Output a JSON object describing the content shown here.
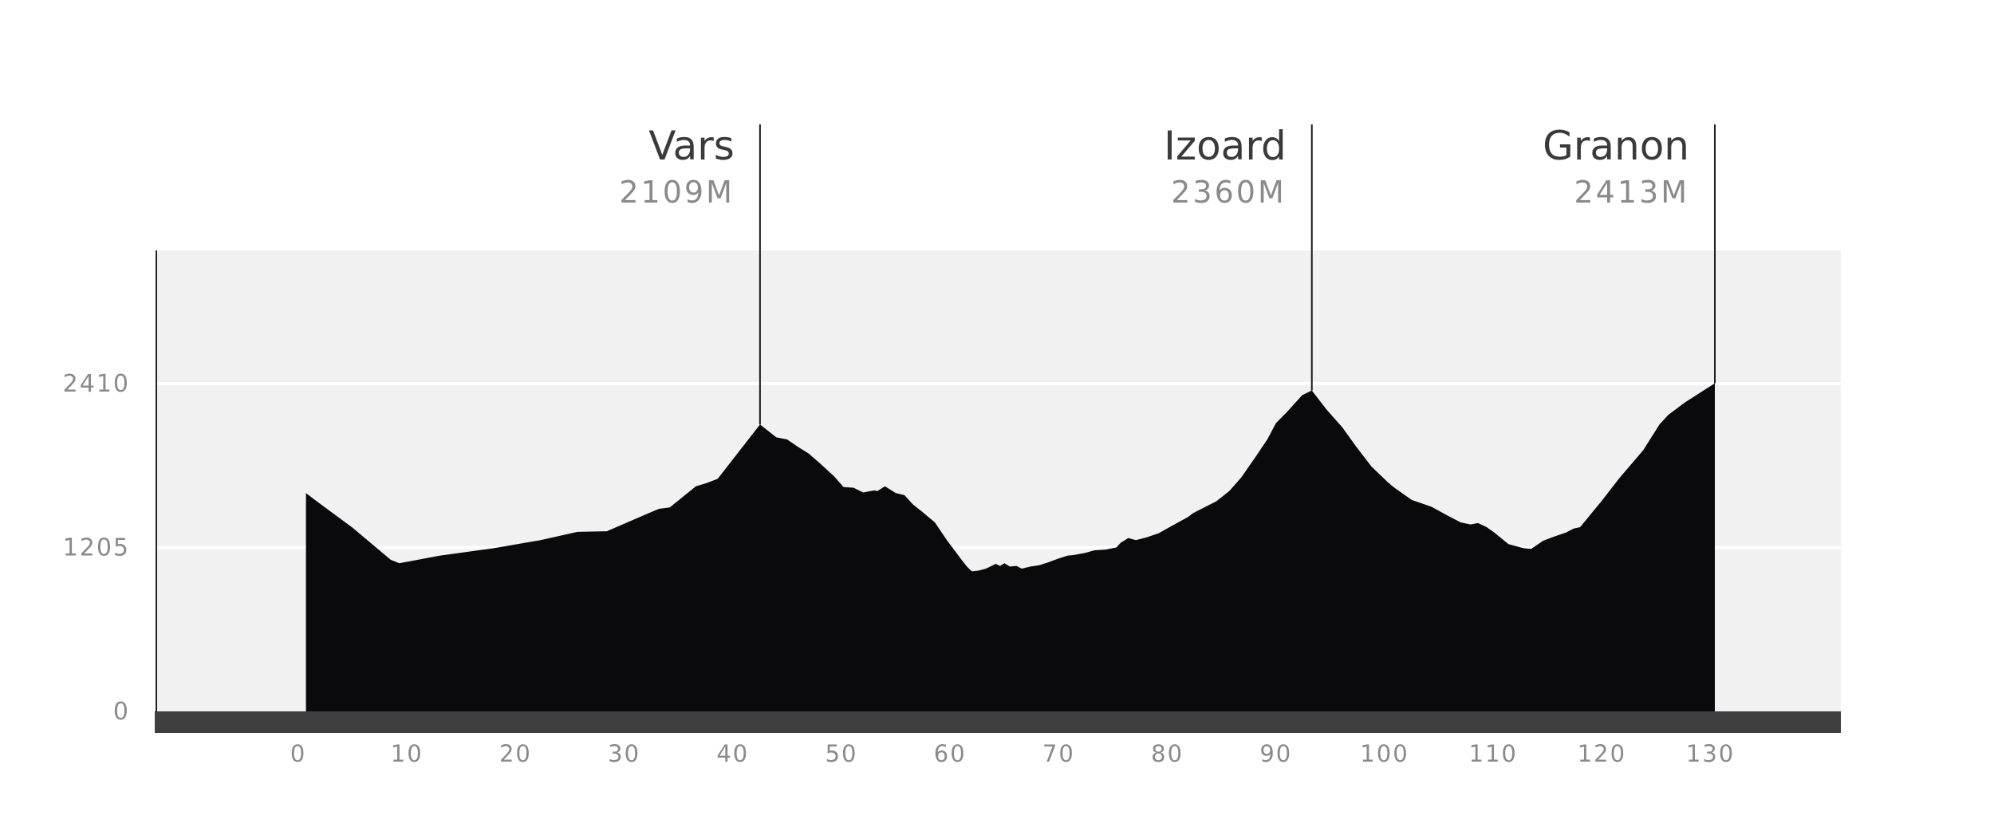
{
  "chart_data": {
    "type": "area",
    "title": "",
    "xlabel": "",
    "ylabel": "",
    "xlim": [
      -13,
      142
    ],
    "ylim": [
      0,
      3390
    ],
    "grid": "horizontal",
    "legend": "none",
    "colors": {
      "background": "#ffffff",
      "plot_area": "#f1f1f1",
      "gridline": "#ffffff",
      "profile_fill": "#0a0a0c",
      "baseline_bar": "#3f3f41",
      "axis_line": "#222222",
      "tick_text": "#8a8a8a",
      "peak_name_text": "#3a3a3a",
      "peak_elev_text": "#8a8a8a"
    },
    "x_ticks": [
      0,
      10,
      20,
      30,
      40,
      50,
      60,
      70,
      80,
      90,
      100,
      110,
      120,
      130
    ],
    "x_tick_labels": [
      "0",
      "10",
      "20",
      "30",
      "40",
      "50",
      "60",
      "70",
      "80",
      "90",
      "100",
      "110",
      "120",
      "130"
    ],
    "y_ticks": [
      0,
      1205,
      2410
    ],
    "y_tick_labels": [
      "0",
      "1205",
      "2410"
    ],
    "series": [
      {
        "x": [
          0.7,
          1.7,
          5,
          8.5,
          9.3,
          13,
          18,
          22.3,
          25.7,
          28.4,
          32.3,
          33.2,
          34.2,
          36.6,
          37.6,
          38.6,
          42.5,
          44,
          45,
          46,
          47,
          48,
          49.3,
          50.2,
          51.1,
          52,
          53,
          53.3,
          54,
          55,
          55.8,
          56.6,
          57.4,
          58.6,
          59.7,
          60.5,
          61.1,
          61.6,
          62,
          62.6,
          63.3,
          64.2,
          64.6,
          65,
          65.5,
          66.1,
          66.6,
          67.4,
          68.2,
          69,
          70,
          70.8,
          71.4,
          72.4,
          73.3,
          74.3,
          75.3,
          75.7,
          76.4,
          77.1,
          78.1,
          79.2,
          80.2,
          81.1,
          81.9,
          82.4,
          83.4,
          84.5,
          85.7,
          86.8,
          88.1,
          89.2,
          90,
          91.1,
          92.4,
          93.3,
          94.7,
          96.1,
          97.4,
          98.8,
          100.3,
          100.9,
          102.5,
          104.3,
          105.8,
          107,
          107.9,
          108.6,
          109.4,
          110.1,
          111.4,
          112.8,
          113.5,
          114.6,
          115.6,
          116.7,
          117.4,
          118,
          120,
          121.6,
          123.8,
          125.3,
          126.1,
          127.7,
          130.4
        ],
        "y": [
          1605,
          1545,
          1350,
          1115,
          1090,
          1145,
          1200,
          1260,
          1320,
          1325,
          1460,
          1490,
          1500,
          1655,
          1680,
          1710,
          2110,
          2015,
          2000,
          1945,
          1895,
          1825,
          1730,
          1650,
          1645,
          1610,
          1625,
          1620,
          1655,
          1605,
          1590,
          1520,
          1470,
          1390,
          1260,
          1175,
          1110,
          1060,
          1030,
          1035,
          1050,
          1085,
          1070,
          1090,
          1065,
          1070,
          1050,
          1065,
          1075,
          1095,
          1125,
          1145,
          1150,
          1165,
          1185,
          1190,
          1205,
          1240,
          1275,
          1260,
          1280,
          1310,
          1355,
          1395,
          1430,
          1460,
          1500,
          1545,
          1620,
          1720,
          1870,
          2000,
          2120,
          2210,
          2325,
          2360,
          2215,
          2090,
          1945,
          1800,
          1685,
          1645,
          1555,
          1505,
          1440,
          1390,
          1375,
          1385,
          1355,
          1315,
          1230,
          1200,
          1195,
          1255,
          1285,
          1315,
          1345,
          1355,
          1550,
          1715,
          1920,
          2110,
          2180,
          2275,
          2413
        ]
      }
    ],
    "peaks": [
      {
        "name": "Vars",
        "elevation_label": "2109M",
        "x": 42.5
      },
      {
        "name": "Izoard",
        "elevation_label": "2360M",
        "x": 93.3
      },
      {
        "name": "Granon",
        "elevation_label": "2413M",
        "x": 130.4
      }
    ]
  }
}
